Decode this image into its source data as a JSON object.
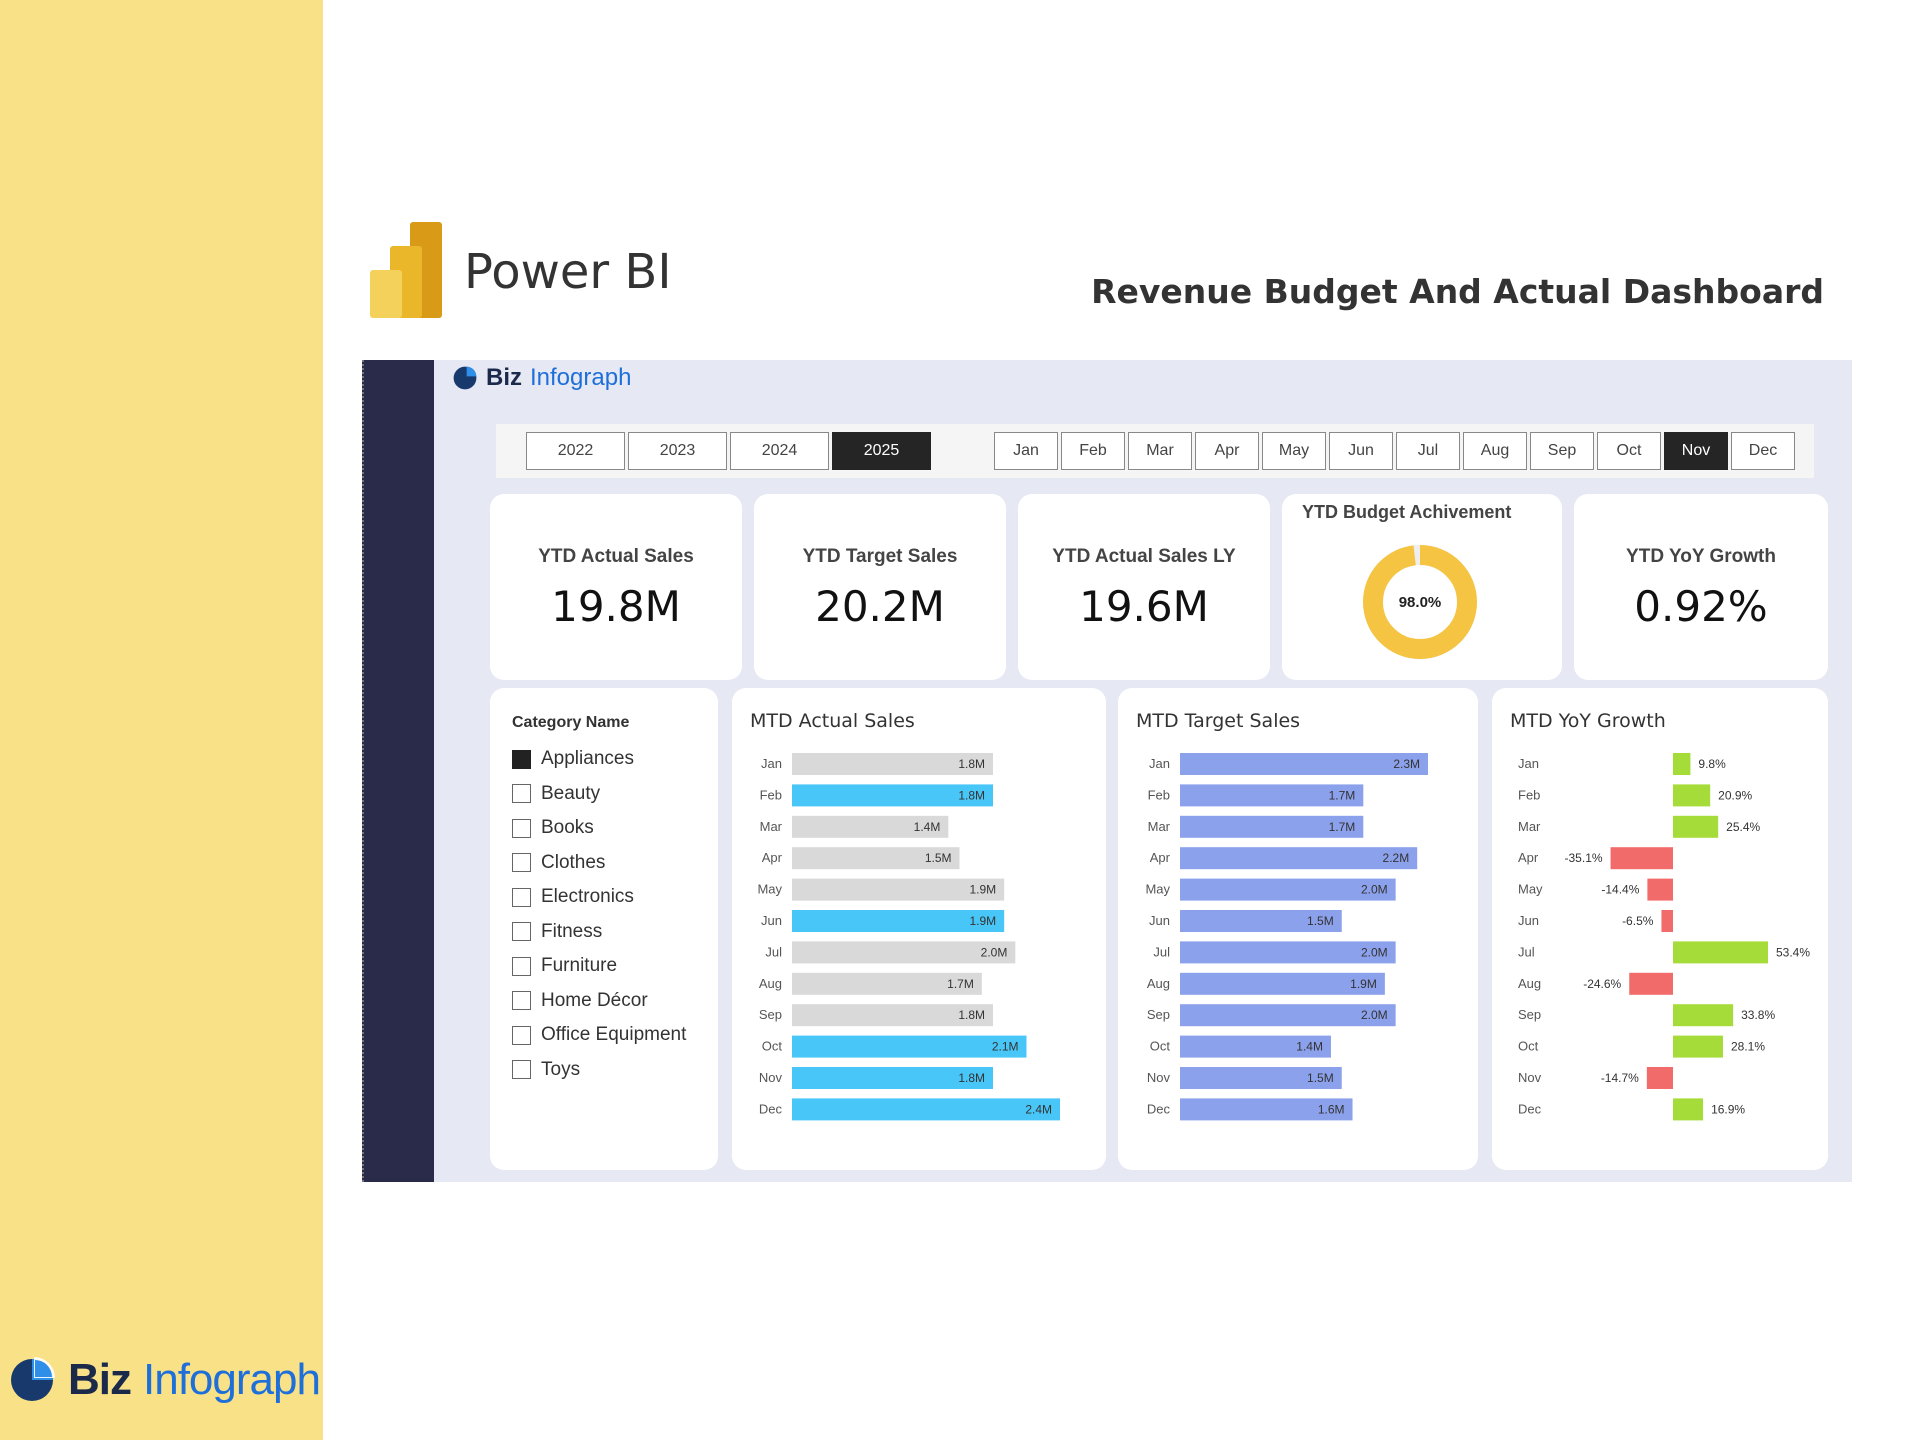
{
  "header": {
    "app_name": "Power BI",
    "dashboard_title": "Revenue Budget And Actual Dashboard"
  },
  "brand": {
    "word1": "Biz",
    "word2": "Infograph"
  },
  "footer_brand": {
    "word1": "Biz",
    "word2": "Infograph"
  },
  "colors": {
    "side_band": "#f8e187",
    "rail": "#2a2b4a",
    "actual_bar": "#48c6f8",
    "actual_bar_muted": "#d9d9d9",
    "target_bar": "#8ca1ec",
    "growth_positive": "#a6dc3a",
    "growth_negative": "#f26b6b",
    "donut": "#f6c443"
  },
  "years": [
    "2022",
    "2023",
    "2024",
    "2025"
  ],
  "selected_year": "2025",
  "months": [
    "Jan",
    "Feb",
    "Mar",
    "Apr",
    "May",
    "Jun",
    "Jul",
    "Aug",
    "Sep",
    "Oct",
    "Nov",
    "Dec"
  ],
  "selected_month": "Nov",
  "kpis": {
    "ytd_actual": {
      "label": "YTD Actual Sales",
      "value": "19.8M"
    },
    "ytd_target": {
      "label": "YTD Target Sales",
      "value": "20.2M"
    },
    "ytd_actual_ly": {
      "label": "YTD Actual Sales LY",
      "value": "19.6M"
    },
    "ytd_budget": {
      "label": "YTD Budget Achivement",
      "value": "98.0%",
      "fraction": 0.98
    },
    "ytd_yoy": {
      "label": "YTD YoY Growth",
      "value": "0.92%"
    }
  },
  "categories": {
    "title": "Category Name",
    "items": [
      {
        "label": "Appliances",
        "checked": true
      },
      {
        "label": "Beauty",
        "checked": false
      },
      {
        "label": "Books",
        "checked": false
      },
      {
        "label": "Clothes",
        "checked": false
      },
      {
        "label": "Electronics",
        "checked": false
      },
      {
        "label": "Fitness",
        "checked": false
      },
      {
        "label": "Furniture",
        "checked": false
      },
      {
        "label": "Home Décor",
        "checked": false
      },
      {
        "label": "Office Equipment",
        "checked": false
      },
      {
        "label": "Toys",
        "checked": false
      }
    ]
  },
  "chart_data": [
    {
      "type": "bar",
      "title": "MTD Actual Sales",
      "orientation": "horizontal",
      "categories": [
        "Jan",
        "Feb",
        "Mar",
        "Apr",
        "May",
        "Jun",
        "Jul",
        "Aug",
        "Sep",
        "Oct",
        "Nov",
        "Dec"
      ],
      "values": [
        1.8,
        1.8,
        1.4,
        1.5,
        1.9,
        1.9,
        2.0,
        1.7,
        1.8,
        2.1,
        1.8,
        2.4
      ],
      "labels": [
        "1.8M",
        "1.8M",
        "1.4M",
        "1.5M",
        "1.9M",
        "1.9M",
        "2.0M",
        "1.7M",
        "1.8M",
        "2.1M",
        "1.8M",
        "2.4M"
      ],
      "highlighted": [
        false,
        true,
        false,
        false,
        false,
        true,
        false,
        false,
        false,
        true,
        true,
        true
      ],
      "xlim": [
        0,
        2.4
      ]
    },
    {
      "type": "bar",
      "title": "MTD Target Sales",
      "orientation": "horizontal",
      "categories": [
        "Jan",
        "Feb",
        "Mar",
        "Apr",
        "May",
        "Jun",
        "Jul",
        "Aug",
        "Sep",
        "Oct",
        "Nov",
        "Dec"
      ],
      "values": [
        2.3,
        1.7,
        1.7,
        2.2,
        2.0,
        1.5,
        2.0,
        1.9,
        2.0,
        1.4,
        1.5,
        1.6
      ],
      "labels": [
        "2.3M",
        "1.7M",
        "1.7M",
        "2.2M",
        "2.0M",
        "1.5M",
        "2.0M",
        "1.9M",
        "2.0M",
        "1.4M",
        "1.5M",
        "1.6M"
      ],
      "xlim": [
        0,
        2.3
      ]
    },
    {
      "type": "bar",
      "title": "MTD YoY Growth",
      "orientation": "horizontal",
      "categories": [
        "Jan",
        "Feb",
        "Mar",
        "Apr",
        "May",
        "Jun",
        "Jul",
        "Aug",
        "Sep",
        "Oct",
        "Nov",
        "Dec"
      ],
      "values": [
        9.8,
        20.9,
        25.4,
        -35.1,
        -14.4,
        -6.5,
        53.4,
        -24.6,
        33.8,
        28.1,
        -14.7,
        16.9
      ],
      "labels": [
        "9.8%",
        "20.9%",
        "25.4%",
        "-35.1%",
        "-14.4%",
        "-6.5%",
        "53.4%",
        "-24.6%",
        "33.8%",
        "28.1%",
        "-14.7%",
        "16.9%"
      ],
      "xlim": [
        -35.1,
        53.4
      ]
    }
  ]
}
